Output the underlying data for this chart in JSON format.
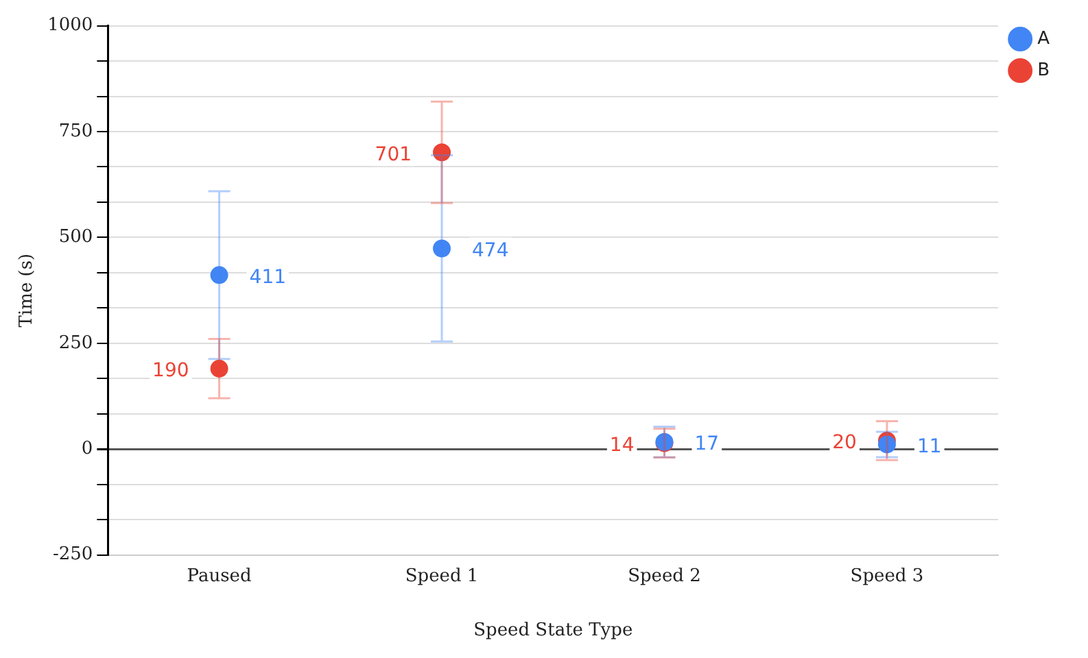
{
  "chart_data": {
    "type": "scatter",
    "xlabel": "Speed State Type",
    "ylabel": "Time (s)",
    "categories": [
      "Paused",
      "Speed 1",
      "Speed 2",
      "Speed 3"
    ],
    "series": [
      {
        "name": "A",
        "color": "#4285f4",
        "values": [
          411,
          474,
          17,
          11
        ],
        "errors": [
          198,
          220,
          36,
          30
        ]
      },
      {
        "name": "B",
        "color": "#ea4335",
        "values": [
          190,
          701,
          14,
          20
        ],
        "errors": [
          70,
          120,
          34,
          46
        ]
      }
    ],
    "ylim": [
      -250,
      1000
    ],
    "yticks": [
      -250,
      {
        "value": -166.67,
        "label": null
      },
      {
        "value": -83.33,
        "label": null
      },
      0,
      {
        "value": 83.33,
        "label": null
      },
      {
        "value": 166.67,
        "label": null
      },
      250,
      {
        "value": 333.33,
        "label": null
      },
      {
        "value": 416.67,
        "label": null
      },
      500,
      {
        "value": 583.33,
        "label": null
      },
      {
        "value": 666.67,
        "label": null
      },
      750,
      {
        "value": 833.33,
        "label": null
      },
      {
        "value": 916.67,
        "label": null
      },
      1000
    ],
    "grid": "y",
    "legend": "top right",
    "marker": "circle",
    "data_labels": true
  }
}
